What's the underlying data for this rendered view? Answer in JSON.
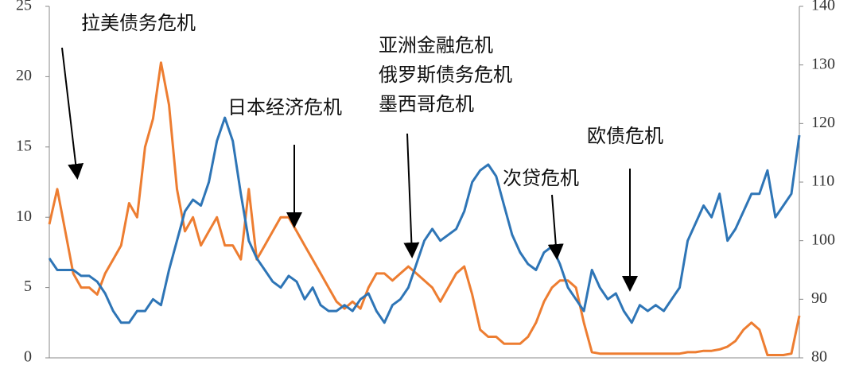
{
  "chart_data": {
    "type": "line",
    "annotations": [
      "拉美债务危机",
      "日本经济危机",
      "亚洲金融危机",
      "俄罗斯债务危机",
      "墨西哥危机",
      "欧债危机",
      "次贷危机"
    ],
    "categories": [
      null,
      null,
      null,
      null,
      null,
      null,
      null,
      null,
      null,
      null,
      null,
      null,
      null,
      null,
      null,
      null,
      null,
      null,
      null,
      null,
      null,
      null,
      null,
      null,
      null,
      null,
      null,
      null,
      null,
      null,
      null,
      null,
      null,
      null,
      null,
      null,
      null,
      null,
      null,
      null,
      null,
      null,
      null,
      null,
      null,
      null,
      null,
      null,
      null,
      null,
      null,
      null,
      null,
      null,
      null,
      null,
      null,
      null,
      null,
      null,
      null,
      null,
      null,
      null,
      null,
      null,
      null,
      null,
      null,
      null,
      null,
      null,
      null,
      null,
      null,
      null,
      null,
      null,
      null,
      null,
      null,
      null,
      null,
      null,
      null,
      null,
      null,
      null,
      null,
      null,
      null,
      null,
      null,
      null,
      null
    ],
    "series": [
      {
        "color": "#ed7d31",
        "axis": "y",
        "values": [
          9.5,
          12,
          9,
          6,
          5,
          5,
          4.5,
          6,
          7,
          8,
          11,
          10,
          15,
          17,
          21,
          18,
          12,
          9,
          10,
          8,
          9,
          10,
          8,
          8,
          7,
          12,
          7,
          8,
          9,
          10,
          10,
          9,
          8,
          7,
          6,
          5,
          4,
          3.5,
          4,
          3.5,
          5,
          6,
          6,
          5.5,
          6,
          6.5,
          6,
          5.5,
          5,
          4,
          5,
          6,
          6.5,
          4.5,
          2,
          1.5,
          1.5,
          1,
          1,
          1,
          1.5,
          2.5,
          4,
          5,
          5.5,
          5.5,
          5,
          2.5,
          0.4,
          0.3,
          0.3,
          0.3,
          0.3,
          0.3,
          0.3,
          0.3,
          0.3,
          0.3,
          0.3,
          0.3,
          0.4,
          0.4,
          0.5,
          0.5,
          0.6,
          0.8,
          1.2,
          2,
          2.5,
          2,
          0.2,
          0.2,
          0.2,
          0.3,
          3
        ]
      },
      {
        "color": "#2e75b6",
        "axis": "y2",
        "values": [
          97,
          95,
          95,
          95,
          94,
          94,
          93,
          91,
          88,
          86,
          86,
          88,
          88,
          90,
          89,
          95,
          100,
          105,
          107,
          106,
          110,
          117,
          121,
          117,
          108,
          100,
          97,
          95,
          93,
          92,
          94,
          93,
          90,
          92,
          89,
          88,
          88,
          89,
          88,
          90,
          91,
          88,
          86,
          89,
          90,
          92,
          96,
          100,
          102,
          100,
          101,
          102,
          105,
          110,
          112,
          113,
          111,
          106,
          101,
          98,
          96,
          95,
          98,
          99,
          96,
          92,
          90,
          88,
          95,
          92,
          90,
          91,
          88,
          86,
          89,
          88,
          89,
          88,
          90,
          92,
          100,
          103,
          106,
          104,
          108,
          100,
          102,
          105,
          108,
          108,
          112,
          104,
          106,
          108,
          118
        ]
      }
    ],
    "ylim": [
      0,
      25
    ],
    "yticks": [
      0,
      5,
      10,
      15,
      20,
      25
    ],
    "y2lim": [
      80,
      140
    ],
    "y2ticks": [
      80,
      90,
      100,
      110,
      120,
      130,
      140
    ]
  }
}
